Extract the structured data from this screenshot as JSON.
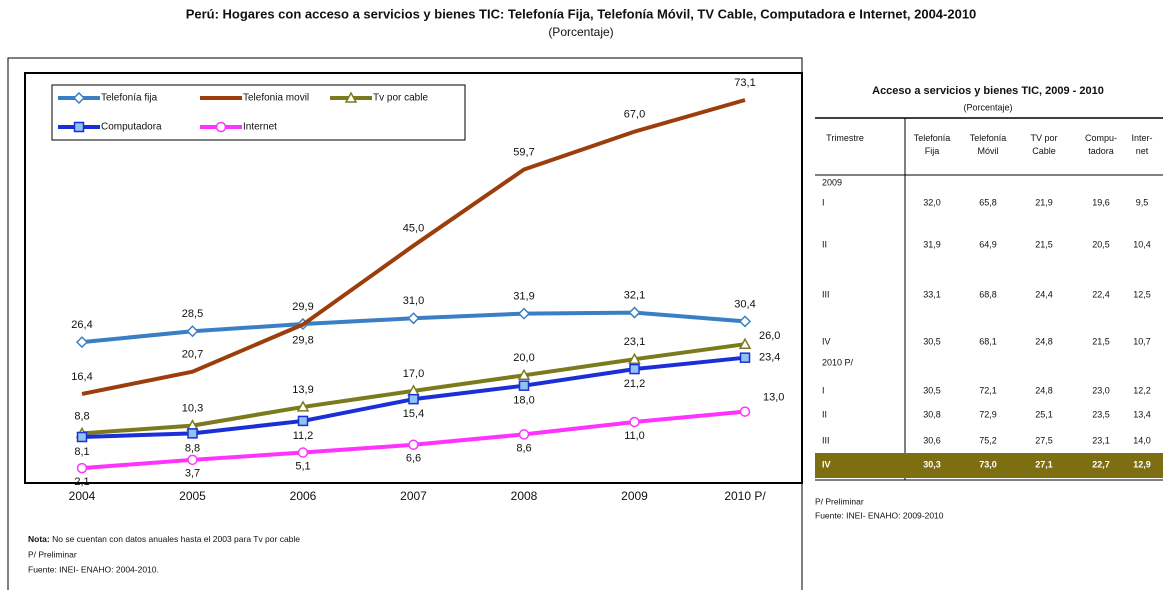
{
  "header": {
    "title": "Perú: Hogares con acceso a servicios y bienes TIC: Telefonía Fija, Telefonía Móvil, TV Cable, Computadora e Internet, 2004-2010",
    "subtitle": "(Porcentaje)"
  },
  "chart_data": {
    "type": "line",
    "categories": [
      "2004",
      "2005",
      "2006",
      "2007",
      "2008",
      "2009",
      "2010 P/"
    ],
    "series": [
      {
        "name": "Telefonía fija",
        "color": "#3a7fc4",
        "marker": "diamond",
        "values": [
          26.4,
          28.5,
          29.9,
          31.0,
          31.9,
          32.1,
          30.4
        ],
        "value_labels": [
          "26,4",
          "28,5",
          "29,9",
          "31,0",
          "31,9",
          "32,1",
          "30,4"
        ]
      },
      {
        "name": "Telefonia movil",
        "color": "#9c3d0c",
        "marker": "none",
        "values": [
          16.4,
          20.7,
          29.8,
          45.0,
          59.7,
          67.0,
          73.1
        ],
        "value_labels": [
          "16,4",
          "20,7",
          "29,8",
          "45,0",
          "59,7",
          "67,0",
          "73,1"
        ]
      },
      {
        "name": "Tv por cable",
        "color": "#7b7b1d",
        "marker": "triangle",
        "values": [
          8.8,
          10.3,
          13.9,
          17.0,
          20.0,
          23.1,
          26.0
        ],
        "value_labels": [
          "8,8",
          "10,3",
          "13,9",
          "17,0",
          "20,0",
          "23,1",
          "26,0"
        ]
      },
      {
        "name": "Computadora",
        "color": "#1b2fd8",
        "marker": "square",
        "values": [
          8.1,
          8.8,
          11.2,
          15.4,
          18.0,
          21.2,
          23.4
        ],
        "value_labels": [
          "8,1",
          "8,8",
          "11,2",
          "15,4",
          "18,0",
          "21,2",
          "23,4"
        ]
      },
      {
        "name": "Internet",
        "color": "#ff33ff",
        "marker": "circle",
        "values": [
          2.1,
          3.7,
          5.1,
          6.6,
          8.6,
          11.0,
          13.0
        ],
        "value_labels": [
          "2,1",
          "3,7",
          "5,1",
          "6,6",
          "8,6",
          "11,0",
          "13,0"
        ]
      }
    ],
    "legend": "top-left"
  },
  "table": {
    "title": "Acceso a servicios y bienes TIC, 2009 - 2010",
    "subtitle": "(Porcentaje)",
    "columns": [
      [
        "Trimestre"
      ],
      [
        "Telefonía",
        "Fija"
      ],
      [
        "Telefonía",
        "Móvil"
      ],
      [
        "TV por",
        "Cable"
      ],
      [
        "Compu-",
        "tadora"
      ],
      [
        "Inter-",
        "net"
      ]
    ],
    "groups": [
      {
        "label": "2009",
        "rows": [
          {
            "q": "I",
            "values": [
              "32,0",
              "65,8",
              "21,9",
              "19,6",
              "9,5"
            ]
          },
          {
            "q": "II",
            "values": [
              "31,9",
              "64,9",
              "21,5",
              "20,5",
              "10,4"
            ]
          },
          {
            "q": "III",
            "values": [
              "33,1",
              "68,8",
              "24,4",
              "22,4",
              "12,5"
            ]
          },
          {
            "q": "IV",
            "values": [
              "30,5",
              "68,1",
              "24,8",
              "21,5",
              "10,7"
            ]
          }
        ]
      },
      {
        "label": "2010 P/",
        "rows": [
          {
            "q": "I",
            "values": [
              "30,5",
              "72,1",
              "24,8",
              "23,0",
              "12,2"
            ]
          },
          {
            "q": "II",
            "values": [
              "30,8",
              "72,9",
              "25,1",
              "23,5",
              "13,4"
            ]
          },
          {
            "q": "III",
            "values": [
              "30,6",
              "75,2",
              "27,5",
              "23,1",
              "14,0"
            ]
          },
          {
            "q": "IV",
            "values": [
              "30,3",
              "73,0",
              "27,1",
              "22,7",
              "12,9"
            ]
          }
        ]
      }
    ],
    "notes": [
      "P/ Preliminar",
      "Fuente: INEI- ENAHO: 2009-2010"
    ]
  },
  "notes": {
    "label": "Nota:",
    "text": " No se cuentan con datos anuales hasta el 2003 para Tv por cable",
    "lines": [
      "P/ Preliminar",
      "Fuente: INEI- ENAHO: 2004-2010."
    ]
  }
}
